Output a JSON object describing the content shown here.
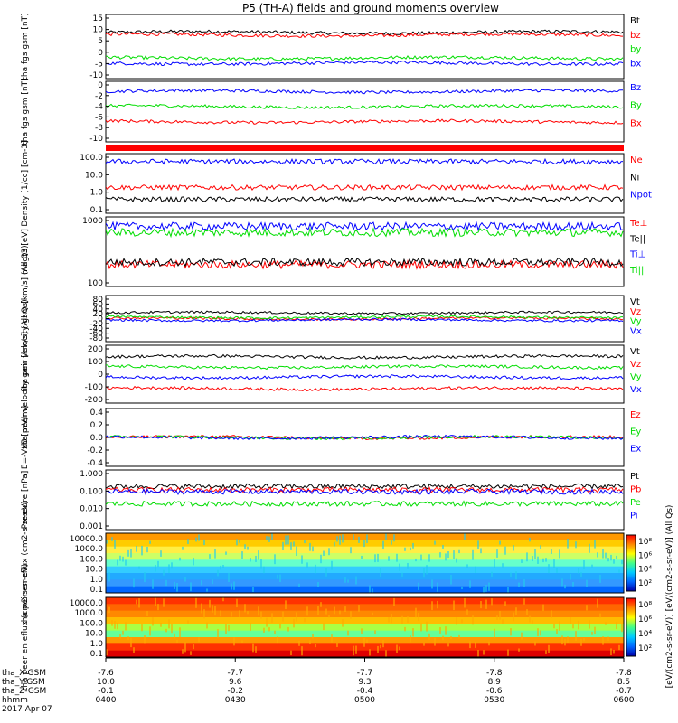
{
  "title": "P5 (TH-A) fields and ground moments overview",
  "colors": {
    "black": "#000000",
    "red": "#ff0000",
    "green": "#00dd00",
    "blue": "#0000ff"
  },
  "chart_data": [
    {
      "type": "line",
      "ylabel": "tha fgs gsm [nT]",
      "ylim": [
        -10,
        15
      ],
      "yticks": [
        "15",
        "10",
        "5",
        "0",
        "-5",
        "-10"
      ],
      "series": [
        {
          "name": "Bt",
          "color": "black",
          "base": 8
        },
        {
          "name": "bz",
          "color": "red",
          "base": 7
        },
        {
          "name": "by",
          "color": "green",
          "base": -2
        },
        {
          "name": "bx",
          "color": "blue",
          "base": -4
        }
      ]
    },
    {
      "type": "line",
      "ylabel": "tha fgs gsm [nT]",
      "ylim": [
        -10,
        2
      ],
      "yticks": [
        "0",
        "-2",
        "-4",
        "-6",
        "-8",
        "-10"
      ],
      "series": [
        {
          "name": "Bz",
          "color": "blue",
          "base": 0
        },
        {
          "name": "By",
          "color": "green",
          "base": -3
        },
        {
          "name": "Bx",
          "color": "red",
          "base": -6
        }
      ]
    },
    {
      "type": "bar",
      "ylabel": "",
      "series": []
    },
    {
      "type": "line",
      "ylabel": "Density [1/cc] [cm-3]",
      "scale": "log",
      "ylim": [
        0.1,
        100
      ],
      "yticks": [
        "100.0",
        "10.0",
        "1.0",
        "0.1"
      ],
      "series": [
        {
          "name": "Ne",
          "color": "red",
          "base": 2
        },
        {
          "name": "Ni",
          "color": "black",
          "base": 0.5
        },
        {
          "name": "Npot",
          "color": "blue",
          "base": 40
        }
      ]
    },
    {
      "type": "line",
      "ylabel": "magt3 [eV]",
      "scale": "log",
      "ylim": [
        30,
        5000
      ],
      "yticks": [
        "1000",
        "100"
      ],
      "series": [
        {
          "name": "Te⊥",
          "color": "red",
          "base": 150
        },
        {
          "name": "Te||",
          "color": "black",
          "base": 180
        },
        {
          "name": "Ti⊥",
          "color": "blue",
          "base": 2500
        },
        {
          "name": "Ti||",
          "color": "green",
          "base": 1600
        }
      ]
    },
    {
      "type": "line",
      "ylabel": "tha peir velocity gsm [km/s] (All Qs)",
      "ylim": [
        -80,
        80
      ],
      "yticks": [
        "80",
        "60",
        "40",
        "20",
        "0",
        "-20",
        "-40",
        "-60",
        "-80"
      ],
      "series": [
        {
          "name": "Vt",
          "color": "black",
          "base": 20
        },
        {
          "name": "Vz",
          "color": "red",
          "base": 0
        },
        {
          "name": "Vy",
          "color": "green",
          "base": 5
        },
        {
          "name": "Vx",
          "color": "blue",
          "base": -5
        }
      ]
    },
    {
      "type": "line",
      "ylabel": "tha peer velocity gsm [km/s] (All Qs)",
      "ylim": [
        -200,
        200
      ],
      "yticks": [
        "200",
        "100",
        "0",
        "-100",
        "-200"
      ],
      "series": [
        {
          "name": "Vt",
          "color": "black",
          "base": 120
        },
        {
          "name": "Vz",
          "color": "red",
          "base": -100
        },
        {
          "name": "Vy",
          "color": "green",
          "base": 50
        },
        {
          "name": "Vx",
          "color": "blue",
          "base": -20
        }
      ]
    },
    {
      "type": "line",
      "ylabel": "E=-VxB [mV/m]",
      "ylim": [
        -0.4,
        0.4
      ],
      "yticks": [
        "0.4",
        "0.2",
        "0.0",
        "-0.2",
        "-0.4"
      ],
      "series": [
        {
          "name": "Ez",
          "color": "red",
          "base": 0
        },
        {
          "name": "Ey",
          "color": "green",
          "base": 0
        },
        {
          "name": "Ex",
          "color": "blue",
          "base": 0
        }
      ]
    },
    {
      "type": "line",
      "ylabel": "Pressure [nPa]",
      "scale": "log",
      "ylim": [
        0.001,
        1
      ],
      "yticks": [
        "1.000",
        "0.100",
        "0.010",
        "0.001"
      ],
      "series": [
        {
          "name": "Pt",
          "color": "black",
          "base": 0.15
        },
        {
          "name": "Pb",
          "color": "red",
          "base": 0.1
        },
        {
          "name": "Pe",
          "color": "green",
          "base": 0.02
        },
        {
          "name": "Pi",
          "color": "blue",
          "base": 0.08
        }
      ]
    },
    {
      "type": "heatmap",
      "ylabel": "tha peir en eflux (cm2-s-sr-eV)",
      "yticks": [
        "10000.0",
        "1000.0",
        "100.0",
        "10.0",
        "1.0",
        "0.1"
      ]
    },
    {
      "type": "heatmap",
      "ylabel": "tha peer en eflux (cm2-s-sr-eV)",
      "yticks": [
        "10000.0",
        "1000.0",
        "100.0",
        "10.0",
        "1.0",
        "0.1"
      ]
    }
  ],
  "colorbar": {
    "ticks1": [
      "10⁸",
      "10⁶",
      "10⁴",
      "10²"
    ],
    "ticks2": [
      "10⁸",
      "10⁶",
      "10⁴",
      "10²"
    ],
    "label": "[eV/(cm2-s-sr-eV)] [eV/(cm2-s-sr-eV)] (All Qs)"
  },
  "xaxis": {
    "labels": [
      "tha_X-GSM",
      "tha_Y-GSM",
      "tha_Z-GSM",
      "hhmm",
      "2017 Apr 07"
    ],
    "columns": [
      {
        "x": "-7.6",
        "y": "10.0",
        "z": "-0.1",
        "t": "0400"
      },
      {
        "x": "-7.7",
        "y": "9.6",
        "z": "-0.2",
        "t": "0430"
      },
      {
        "x": "-7.7",
        "y": "9.3",
        "z": "-0.4",
        "t": "0500"
      },
      {
        "x": "-7.8",
        "y": "8.9",
        "z": "-0.6",
        "t": "0530"
      },
      {
        "x": "-7.8",
        "y": "8.5",
        "z": "-0.7",
        "t": "0600"
      }
    ]
  }
}
